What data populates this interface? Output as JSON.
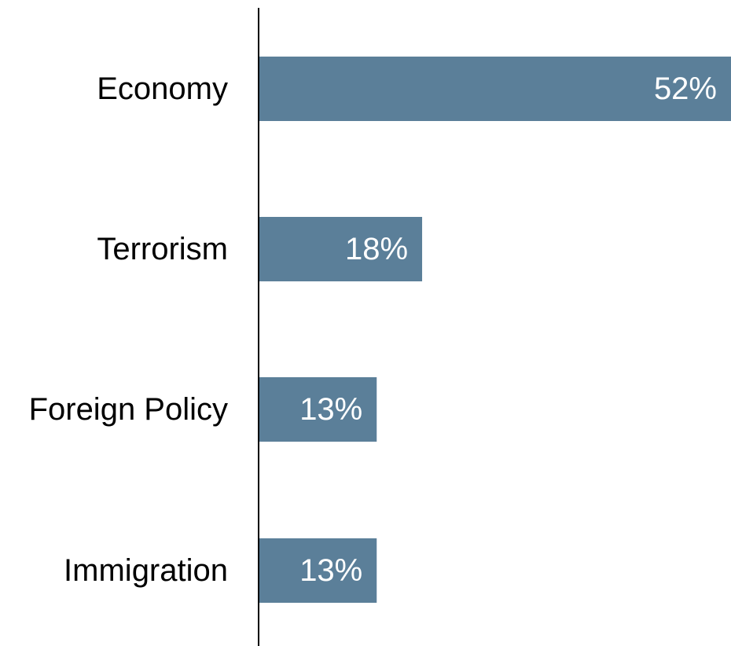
{
  "chart_data": {
    "type": "bar",
    "orientation": "horizontal",
    "categories": [
      "Economy",
      "Terrorism",
      "Foreign Policy",
      "Immigration"
    ],
    "values": [
      52,
      18,
      13,
      13
    ],
    "value_labels": [
      "52%",
      "18%",
      "13%",
      "13%"
    ],
    "title": "",
    "xlabel": "",
    "ylabel": "",
    "xlim": [
      0,
      52
    ],
    "grid": false,
    "legend": "none",
    "colors": {
      "bar": "#5b7f99",
      "axis": "#000000",
      "category_text": "#000000",
      "value_text": "#ffffff"
    }
  }
}
